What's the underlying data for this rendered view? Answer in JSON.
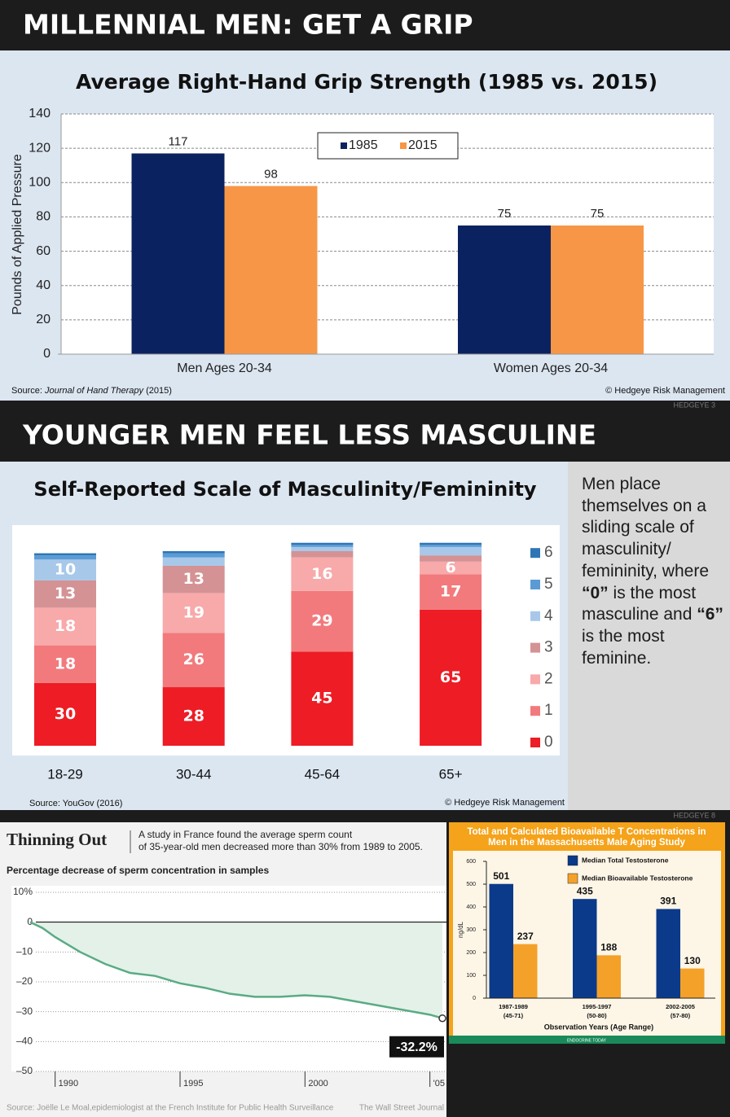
{
  "headers": [
    "MILLENNIAL MEN: GET A GRIP",
    "YOUNGER MEN FEEL LESS MASCULINE"
  ],
  "page_marks": [
    "HEDGEYE 3",
    "HEDGEYE 8"
  ],
  "note": [
    "Men place themselves on a sliding scale of masculinity/ femininity, where ",
    "“0”",
    " is the most masculine and ",
    "“6”",
    " is the most feminine."
  ],
  "chart_data": [
    {
      "type": "bar",
      "title": "Average Right-Hand Grip Strength (1985 vs. 2015)",
      "y_label": "Pounds of Applied Pressure",
      "categories": [
        "Men Ages 20-34",
        "Women Ages 20-34"
      ],
      "series": [
        {
          "name": "1985",
          "color": "#0b2260",
          "values": [
            117,
            75
          ]
        },
        {
          "name": "2015",
          "color": "#f79646",
          "values": [
            98,
            75
          ]
        }
      ],
      "ylim": [
        0,
        140
      ],
      "yticks": [
        0,
        20,
        40,
        60,
        80,
        100,
        120,
        140
      ],
      "grid": true,
      "source": [
        "Source: ",
        "Journal of Hand Therapy",
        " (2015)"
      ],
      "credit": "© Hedgeye Risk Management"
    },
    {
      "type": "stacked_bar",
      "title": "Self-Reported Scale of Masculinity/Femininity",
      "categories": [
        "18-29",
        "30-44",
        "45-64",
        "65+"
      ],
      "series": [
        {
          "name": "0",
          "color": "#ee1c24",
          "values": [
            30,
            28,
            45,
            65
          ]
        },
        {
          "name": "1",
          "color": "#f27a7c",
          "values": [
            18,
            26,
            29,
            17
          ]
        },
        {
          "name": "2",
          "color": "#f8a9aa",
          "values": [
            18,
            19,
            16,
            6
          ]
        },
        {
          "name": "3",
          "color": "#d49294",
          "values": [
            13,
            13,
            3,
            3
          ]
        },
        {
          "name": "4",
          "color": "#a8c8e9",
          "values": [
            10,
            4,
            2,
            4
          ]
        },
        {
          "name": "5",
          "color": "#5b9bd5",
          "values": [
            2,
            2,
            1,
            1
          ]
        },
        {
          "name": "6",
          "color": "#2e75b6",
          "values": [
            1,
            1,
            1,
            1
          ]
        }
      ],
      "source": "Source: YouGov (2016)",
      "credit": "© Hedgeye Risk Management"
    },
    {
      "type": "line",
      "title": "Thinning Out",
      "subtitle": [
        "A study in France found the average sperm count",
        "of 35-year-old men decreased more than 30% from 1989 to 2005."
      ],
      "axis_title": "Percentage decrease of sperm concentration in samples",
      "x": [
        1989,
        1989.5,
        1990,
        1991,
        1992,
        1993,
        1994,
        1995,
        1996,
        1997,
        1998,
        1999,
        2000,
        2001,
        2002,
        2003,
        2004,
        2005,
        2005.5
      ],
      "values": [
        0,
        -2,
        -5,
        -10,
        -14,
        -17,
        -18,
        -20.5,
        -22,
        -24,
        -25,
        -25,
        -24.5,
        -25,
        -26.5,
        -28,
        -29.5,
        -31,
        -32.2
      ],
      "color": "#5aab83",
      "xlim": [
        1989,
        2005.5
      ],
      "ylim": [
        -50,
        10
      ],
      "yticks": [
        {
          "value": 10,
          "label": "10%"
        },
        0,
        {
          "value": -10,
          "label": "–10"
        },
        {
          "value": -20,
          "label": "–20"
        },
        {
          "value": -30,
          "label": "–30"
        },
        {
          "value": -40,
          "label": "–40"
        },
        {
          "value": -50,
          "label": "–50"
        }
      ],
      "xticks": [
        1990,
        1995,
        2000,
        {
          "value": 2005,
          "label": "'05"
        }
      ],
      "annotation": "-32.2%",
      "source": "Source: Joëlle Le Moal,epidemiologist at the French Institute for Public Health Surveillance",
      "credit": "The Wall Street Journal"
    },
    {
      "type": "bar",
      "title": [
        "Total and Calculated Bioavailable T Concentrations in",
        "Men in the Massachusetts Male Aging Study"
      ],
      "categories": [
        "1987-1989",
        "1995-1997",
        "2002-2005"
      ],
      "age_ranges": [
        "(45-71)",
        "(50-80)",
        "(57-80)"
      ],
      "x_label": "Observation Years (Age Range)",
      "y_label": "ng/dL",
      "series": [
        {
          "name": "Median Total Testosterone",
          "color": "#0b3a8a",
          "values": [
            501,
            435,
            391
          ]
        },
        {
          "name": "Median Bioavailable Testosterone",
          "color": "#f4a12a",
          "values": [
            237,
            188,
            130
          ]
        }
      ],
      "ylim": [
        0,
        600
      ],
      "yticks": [
        0,
        100,
        200,
        300,
        400,
        500,
        600
      ],
      "grid": false,
      "footer": "ENDOCRINE TODAY"
    }
  ]
}
